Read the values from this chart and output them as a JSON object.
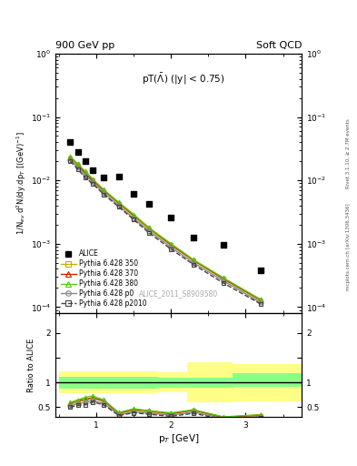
{
  "title_top": "900 GeV pp",
  "title_right": "Soft QCD",
  "plot_label": "pT($\\bar{\\Lambda}$) (|y| < 0.75)",
  "watermark": "ALICE_2011_S8909580",
  "right_label_top": "Rivet 3.1.10, ≥ 2.7M events",
  "right_label_bot": "mcplots.cern.ch [arXiv:1306.3436]",
  "ylabel_main": "1/N$_{ev}$ d$^2$N/dy.dp$_T$ [(GeV)$^{-1}$]",
  "ylabel_ratio": "Ratio to ALICE",
  "xlabel": "p$_T$ [GeV]",
  "alice_pt": [
    0.65,
    0.75,
    0.85,
    0.95,
    1.1,
    1.3,
    1.5,
    1.7,
    2.0,
    2.3,
    2.7,
    3.2
  ],
  "alice_val": [
    0.04,
    0.028,
    0.02,
    0.0145,
    0.011,
    0.0115,
    0.0062,
    0.0042,
    0.0026,
    0.00125,
    0.00095,
    0.00038
  ],
  "py_pt": [
    0.65,
    0.75,
    0.85,
    0.95,
    1.1,
    1.3,
    1.5,
    1.7,
    2.0,
    2.3,
    2.7,
    3.2
  ],
  "py350_val": [
    0.022,
    0.017,
    0.013,
    0.01,
    0.0068,
    0.0043,
    0.0027,
    0.0017,
    0.00095,
    0.00054,
    0.00028,
    0.000125
  ],
  "py370_val": [
    0.023,
    0.018,
    0.013,
    0.01,
    0.0069,
    0.0044,
    0.0028,
    0.0018,
    0.00096,
    0.00055,
    0.00028,
    0.00013
  ],
  "py380_val": [
    0.024,
    0.018,
    0.014,
    0.0105,
    0.0071,
    0.0045,
    0.0029,
    0.0018,
    0.001,
    0.00056,
    0.00029,
    0.000132
  ],
  "pyp0_val": [
    0.021,
    0.016,
    0.012,
    0.0093,
    0.0063,
    0.004,
    0.0025,
    0.0016,
    0.00088,
    0.0005,
    0.00026,
    0.000118
  ],
  "pyp2010_val": [
    0.02,
    0.015,
    0.011,
    0.0088,
    0.006,
    0.0038,
    0.0024,
    0.0015,
    0.00082,
    0.00047,
    0.00024,
    0.000112
  ],
  "color_350": "#ccaa00",
  "color_370": "#cc2200",
  "color_380": "#55cc00",
  "color_p0": "#888888",
  "color_p2010": "#444444",
  "ylim_main": [
    8e-05,
    1.0
  ],
  "ylim_ratio": [
    0.3,
    2.4
  ],
  "xlim": [
    0.45,
    3.75
  ]
}
